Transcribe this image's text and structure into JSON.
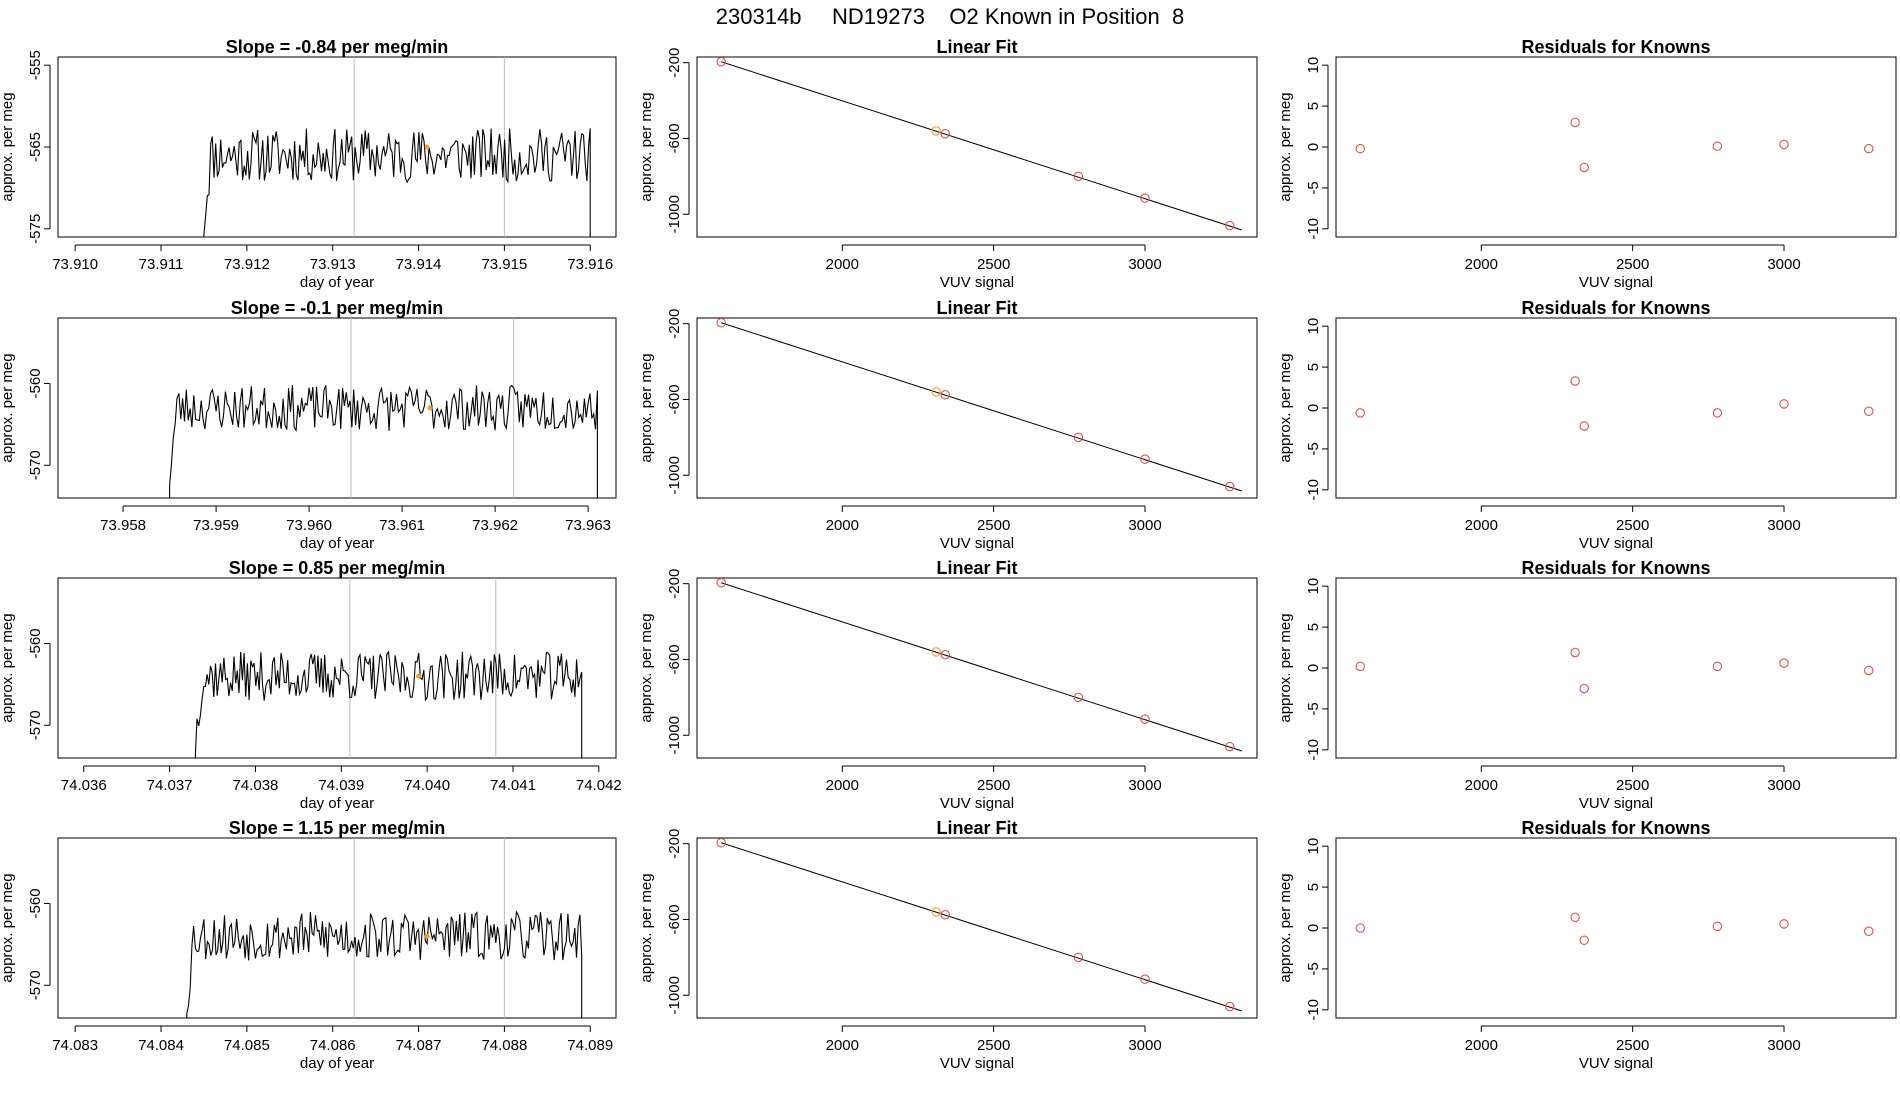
{
  "page": {
    "title": "230314b     ND19273    O2 Known in Position  8"
  },
  "colors": {
    "axis": "#000000",
    "trace": "#000000",
    "refline": "#bbbbbb",
    "point": "#d9534f",
    "highlight": "#f0a030",
    "fitline": "#000000"
  },
  "chart_data": [
    {
      "type": "line",
      "panel": "time-series",
      "row": 0,
      "title": "Slope =  -0.84  per meg/min",
      "xlabel": "day of year",
      "ylabel": "approx. per meg",
      "xlim": [
        73.9098,
        73.9163
      ],
      "ylim": [
        -576,
        -554
      ],
      "xticks": [
        73.91,
        73.911,
        73.912,
        73.913,
        73.914,
        73.915,
        73.916
      ],
      "xtick_labels": [
        "73.910",
        "73.911",
        "73.912",
        "73.913",
        "73.914",
        "73.915",
        "73.916"
      ],
      "yticks": [
        -575,
        -565,
        -555
      ],
      "ytick_labels": [
        "-575",
        "-565",
        "-555"
      ],
      "trace": {
        "x_start": 73.9115,
        "x_end": 73.916,
        "mean": -566,
        "amp": 3.3,
        "seed": 11,
        "start_low": -578,
        "end_low": -578
      },
      "reference_lines": [
        73.91325,
        73.915
      ],
      "marker": {
        "x": 73.9141,
        "y": -565
      }
    },
    {
      "type": "line",
      "panel": "time-series",
      "row": 1,
      "title": "Slope =  -0.1  per meg/min",
      "xlabel": "day of year",
      "ylabel": "approx. per meg",
      "xlim": [
        73.9573,
        73.9633
      ],
      "ylim": [
        -574,
        -552
      ],
      "xticks": [
        73.958,
        73.959,
        73.96,
        73.961,
        73.962,
        73.963
      ],
      "xtick_labels": [
        "73.958",
        "73.959",
        "73.960",
        "73.961",
        "73.962",
        "73.963"
      ],
      "yticks": [
        -570,
        -560
      ],
      "ytick_labels": [
        "-570",
        "-560"
      ],
      "trace": {
        "x_start": 73.9585,
        "x_end": 73.9631,
        "mean": -563,
        "amp": 2.8,
        "seed": 23,
        "start_low": -575,
        "end_low": -575
      },
      "reference_lines": [
        73.96045,
        73.9622
      ],
      "marker": {
        "x": 73.9613,
        "y": -563
      }
    },
    {
      "type": "line",
      "panel": "time-series",
      "row": 2,
      "title": "Slope =  0.85  per meg/min",
      "xlabel": "day of year",
      "ylabel": "approx. per meg",
      "xlim": [
        74.0357,
        74.0422
      ],
      "ylim": [
        -574,
        -552
      ],
      "xticks": [
        74.036,
        74.037,
        74.038,
        74.039,
        74.04,
        74.041,
        74.042
      ],
      "xtick_labels": [
        "74.036",
        "74.037",
        "74.038",
        "74.039",
        "74.040",
        "74.041",
        "74.042"
      ],
      "yticks": [
        -570,
        -560
      ],
      "ytick_labels": [
        "-570",
        "-560"
      ],
      "trace": {
        "x_start": 74.0373,
        "x_end": 74.0418,
        "mean": -564,
        "amp": 3.0,
        "seed": 37,
        "start_low": -575,
        "end_low": -575
      },
      "reference_lines": [
        74.0391,
        74.0408
      ],
      "marker": {
        "x": 74.0399,
        "y": -564
      }
    },
    {
      "type": "line",
      "panel": "time-series",
      "row": 3,
      "title": "Slope =  1.15  per meg/min",
      "xlabel": "day of year",
      "ylabel": "approx. per meg",
      "xlim": [
        74.0828,
        74.0893
      ],
      "ylim": [
        -574,
        -552
      ],
      "xticks": [
        74.083,
        74.084,
        74.085,
        74.086,
        74.087,
        74.088,
        74.089
      ],
      "xtick_labels": [
        "74.083",
        "74.084",
        "74.085",
        "74.086",
        "74.087",
        "74.088",
        "74.089"
      ],
      "yticks": [
        -570,
        -560
      ],
      "ytick_labels": [
        "-570",
        "-560"
      ],
      "trace": {
        "x_start": 74.0843,
        "x_end": 74.0889,
        "mean": -564,
        "amp": 3.0,
        "seed": 53,
        "start_low": -575,
        "end_low": -575
      },
      "reference_lines": [
        74.08625,
        74.088
      ],
      "marker": {
        "x": 74.0871,
        "y": -564
      }
    },
    {
      "type": "scatter",
      "panel": "linear-fit",
      "row": 0,
      "title": "Linear Fit",
      "xlabel": "VUV signal",
      "ylabel": "approx. per meg",
      "xlim": [
        1520,
        3370
      ],
      "ylim": [
        -1120,
        -170
      ],
      "xticks": [
        2000,
        2500,
        3000
      ],
      "xtick_labels": [
        "2000",
        "2500",
        "3000"
      ],
      "yticks": [
        -1000,
        -600,
        -200
      ],
      "ytick_labels": [
        "-1000",
        "-600",
        "-200"
      ],
      "x": [
        1600,
        2310,
        2340,
        2780,
        3000,
        3280
      ],
      "y": [
        -195,
        -560,
        -575,
        -800,
        -915,
        -1060
      ],
      "highlight_index": 1,
      "fit": {
        "x": [
          1600,
          3320
        ],
        "y": [
          -195,
          -1083
        ]
      }
    },
    {
      "type": "scatter",
      "panel": "linear-fit",
      "row": 1,
      "title": "Linear Fit",
      "xlabel": "VUV signal",
      "ylabel": "approx. per meg",
      "xlim": [
        1520,
        3370
      ],
      "ylim": [
        -1120,
        -170
      ],
      "xticks": [
        2000,
        2500,
        3000
      ],
      "xtick_labels": [
        "2000",
        "2500",
        "3000"
      ],
      "yticks": [
        -1000,
        -600,
        -200
      ],
      "ytick_labels": [
        "-1000",
        "-600",
        "-200"
      ],
      "x": [
        1600,
        2310,
        2340,
        2780,
        3000,
        3280
      ],
      "y": [
        -195,
        -560,
        -575,
        -800,
        -915,
        -1060
      ],
      "highlight_index": 1,
      "fit": {
        "x": [
          1600,
          3320
        ],
        "y": [
          -195,
          -1083
        ]
      }
    },
    {
      "type": "scatter",
      "panel": "linear-fit",
      "row": 2,
      "title": "Linear Fit",
      "xlabel": "VUV signal",
      "ylabel": "approx. per meg",
      "xlim": [
        1520,
        3370
      ],
      "ylim": [
        -1120,
        -170
      ],
      "xticks": [
        2000,
        2500,
        3000
      ],
      "xtick_labels": [
        "2000",
        "2500",
        "3000"
      ],
      "yticks": [
        -1000,
        -600,
        -200
      ],
      "ytick_labels": [
        "-1000",
        "-600",
        "-200"
      ],
      "x": [
        1600,
        2310,
        2340,
        2780,
        3000,
        3280
      ],
      "y": [
        -195,
        -560,
        -575,
        -800,
        -915,
        -1060
      ],
      "highlight_index": 1,
      "fit": {
        "x": [
          1600,
          3320
        ],
        "y": [
          -195,
          -1083
        ]
      }
    },
    {
      "type": "scatter",
      "panel": "linear-fit",
      "row": 3,
      "title": "Linear Fit",
      "xlabel": "VUV signal",
      "ylabel": "approx. per meg",
      "xlim": [
        1520,
        3370
      ],
      "ylim": [
        -1120,
        -170
      ],
      "xticks": [
        2000,
        2500,
        3000
      ],
      "xtick_labels": [
        "2000",
        "2500",
        "3000"
      ],
      "yticks": [
        -1000,
        -600,
        -200
      ],
      "ytick_labels": [
        "-1000",
        "-600",
        "-200"
      ],
      "x": [
        1600,
        2310,
        2340,
        2780,
        3000,
        3280
      ],
      "y": [
        -195,
        -560,
        -575,
        -800,
        -915,
        -1060
      ],
      "highlight_index": 1,
      "fit": {
        "x": [
          1600,
          3320
        ],
        "y": [
          -195,
          -1083
        ]
      }
    },
    {
      "type": "scatter",
      "panel": "residuals",
      "row": 0,
      "title": "Residuals for Knowns",
      "xlabel": "VUV signal",
      "ylabel": "approx. per meg",
      "xlim": [
        1520,
        3370
      ],
      "ylim": [
        -11,
        11
      ],
      "xticks": [
        2000,
        2500,
        3000
      ],
      "xtick_labels": [
        "2000",
        "2500",
        "3000"
      ],
      "yticks": [
        -10,
        -5,
        0,
        5,
        10
      ],
      "ytick_labels": [
        "-10",
        "-5",
        "0",
        "5",
        "10"
      ],
      "x": [
        1600,
        2310,
        2340,
        2780,
        3000,
        3280
      ],
      "y": [
        -0.2,
        3.0,
        -2.5,
        0.1,
        0.3,
        -0.2
      ]
    },
    {
      "type": "scatter",
      "panel": "residuals",
      "row": 1,
      "title": "Residuals for Knowns",
      "xlabel": "VUV signal",
      "ylabel": "approx. per meg",
      "xlim": [
        1520,
        3370
      ],
      "ylim": [
        -11,
        11
      ],
      "xticks": [
        2000,
        2500,
        3000
      ],
      "xtick_labels": [
        "2000",
        "2500",
        "3000"
      ],
      "yticks": [
        -10,
        -5,
        0,
        5,
        10
      ],
      "ytick_labels": [
        "-10",
        "-5",
        "0",
        "5",
        "10"
      ],
      "x": [
        1600,
        2310,
        2340,
        2780,
        3000,
        3280
      ],
      "y": [
        -0.6,
        3.3,
        -2.2,
        -0.6,
        0.5,
        -0.4
      ]
    },
    {
      "type": "scatter",
      "panel": "residuals",
      "row": 2,
      "title": "Residuals for Knowns",
      "xlabel": "VUV signal",
      "ylabel": "approx. per meg",
      "xlim": [
        1520,
        3370
      ],
      "ylim": [
        -11,
        11
      ],
      "xticks": [
        2000,
        2500,
        3000
      ],
      "xtick_labels": [
        "2000",
        "2500",
        "3000"
      ],
      "yticks": [
        -10,
        -5,
        0,
        5,
        10
      ],
      "ytick_labels": [
        "-10",
        "-5",
        "0",
        "5",
        "10"
      ],
      "x": [
        1600,
        2310,
        2340,
        2780,
        3000,
        3280
      ],
      "y": [
        0.2,
        1.9,
        -2.5,
        0.2,
        0.6,
        -0.3
      ]
    },
    {
      "type": "scatter",
      "panel": "residuals",
      "row": 3,
      "title": "Residuals for Knowns",
      "xlabel": "VUV signal",
      "ylabel": "approx. per meg",
      "xlim": [
        1520,
        3370
      ],
      "ylim": [
        -11,
        11
      ],
      "xticks": [
        2000,
        2500,
        3000
      ],
      "xtick_labels": [
        "2000",
        "2500",
        "3000"
      ],
      "yticks": [
        -10,
        -5,
        0,
        5,
        10
      ],
      "ytick_labels": [
        "-10",
        "-5",
        "0",
        "5",
        "10"
      ],
      "x": [
        1600,
        2310,
        2340,
        2780,
        3000,
        3280
      ],
      "y": [
        0.0,
        1.3,
        -1.5,
        0.2,
        0.5,
        -0.4
      ]
    }
  ]
}
